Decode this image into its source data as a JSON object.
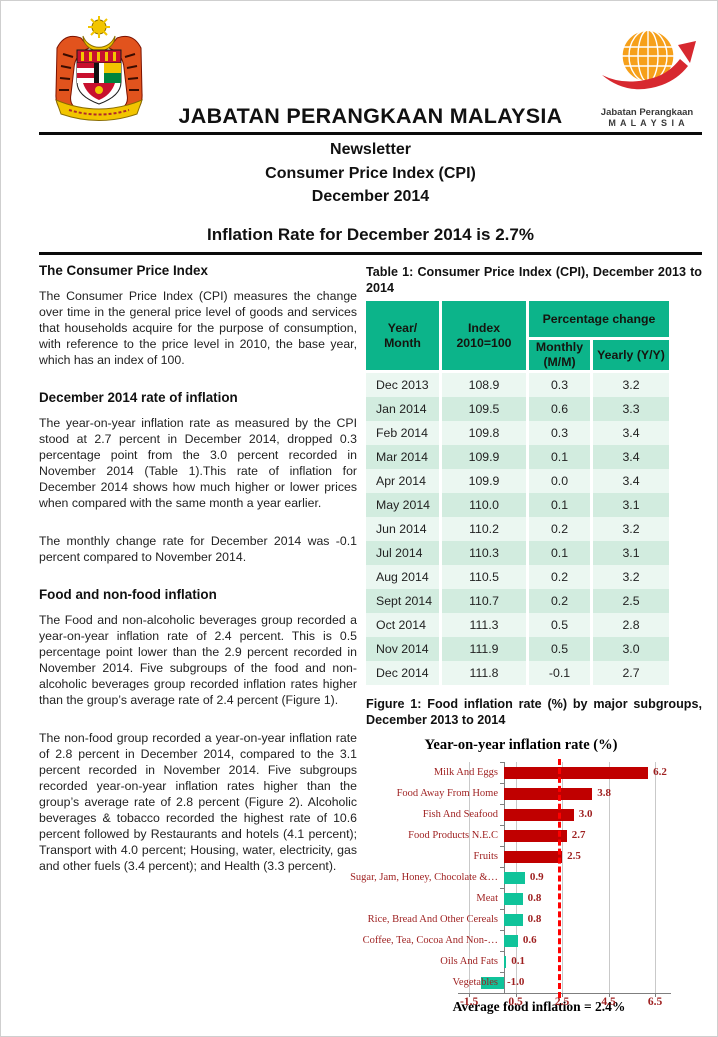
{
  "header": {
    "org_title": "JABATAN PERANGKAAN MALAYSIA",
    "doc_title_lines": [
      "Newsletter",
      "Consumer Price Index (CPI)",
      "December 2014"
    ],
    "headline": "Inflation Rate for December 2014 is 2.7%",
    "logo_right": {
      "line1": "Jabatan Perangkaan",
      "line2": "M A L A Y S I A"
    }
  },
  "article": {
    "sections": [
      {
        "heading": "The Consumer Price Index",
        "paragraphs": [
          "The Consumer Price Index (CPI) measures the change over time in the general price level of goods and services that households acquire for the purpose of consumption, with reference to the price level in 2010, the base year, which has an index of 100."
        ]
      },
      {
        "heading": "December 2014 rate of inflation",
        "paragraphs": [
          "The year-on-year inflation rate as measured by the CPI stood at 2.7 percent in December 2014, dropped 0.3 percentage point from the 3.0 percent recorded in November 2014 (Table 1).This rate of inflation for December 2014 shows how much higher or lower prices when compared with the same month a year earlier.",
          "The monthly change rate for December 2014 was -0.1 percent compared to November 2014."
        ]
      },
      {
        "heading": "Food and non-food inflation",
        "paragraphs": [
          "The Food and non-alcoholic beverages group recorded a year-on-year inflation rate of 2.4 percent. This is 0.5 percentage point lower than the 2.9 percent recorded in November 2014. Five subgroups of the food and non-alcoholic beverages group recorded inflation rates higher than the group’s average rate of 2.4 percent (Figure 1).",
          "The non-food group recorded a year-on-year inflation rate of 2.8 percent in December 2014, compared to the 3.1 percent recorded in November 2014. Five subgroups recorded year-on-year inflation rates higher than the group’s average rate of 2.8 percent (Figure 2). Alcoholic beverages & tobacco recorded the highest rate of 10.6 percent followed by Restaurants and hotels (4.1 percent); Transport with 4.0 percent; Housing, water, electricity, gas and other fuels (3.4 percent); and Health (3.3 percent)."
        ]
      }
    ]
  },
  "table1": {
    "caption": "Table 1: Consumer Price Index (CPI), December 2013 to 2014",
    "headers": {
      "year_month": "Year/\nMonth",
      "index": "Index\n2010=100",
      "pct_change": "Percentage change",
      "monthly": "Monthly\n(M/M)",
      "yearly": "Yearly (Y/Y)"
    },
    "rows": [
      [
        "Dec 2013",
        "108.9",
        "0.3",
        "3.2"
      ],
      [
        "Jan 2014",
        "109.5",
        "0.6",
        "3.3"
      ],
      [
        "Feb 2014",
        "109.8",
        "0.3",
        "3.4"
      ],
      [
        "Mar 2014",
        "109.9",
        "0.1",
        "3.4"
      ],
      [
        "Apr 2014",
        "109.9",
        "0.0",
        "3.4"
      ],
      [
        "May 2014",
        "110.0",
        "0.1",
        "3.1"
      ],
      [
        "Jun 2014",
        "110.2",
        "0.2",
        "3.2"
      ],
      [
        "Jul 2014",
        "110.3",
        "0.1",
        "3.1"
      ],
      [
        "Aug 2014",
        "110.5",
        "0.2",
        "3.2"
      ],
      [
        "Sept 2014",
        "110.7",
        "0.2",
        "2.5"
      ],
      [
        "Oct 2014",
        "111.3",
        "0.5",
        "2.8"
      ],
      [
        "Nov 2014",
        "111.9",
        "0.5",
        "3.0"
      ],
      [
        "Dec 2014",
        "111.8",
        "-0.1",
        "2.7"
      ]
    ]
  },
  "figure1": {
    "caption": "Figure 1: Food inflation rate  (%) by major subgroups, December 2013 to 2014"
  },
  "chart_data": {
    "type": "bar",
    "orientation": "horizontal",
    "title": "Year-on-year inflation rate (%)",
    "categories": [
      "Milk And Eggs",
      "Food Away From Home",
      "Fish And Seafood",
      "Food Products N.E.C",
      "Fruits",
      "Sugar, Jam, Honey, Chocolate &…",
      "Meat",
      "Rice, Bread And Other Cereals",
      "Coffee, Tea, Cocoa And Non-…",
      "Oils And Fats",
      "Vegetables"
    ],
    "values": [
      6.2,
      3.8,
      3.0,
      2.7,
      2.5,
      0.9,
      0.8,
      0.8,
      0.6,
      0.1,
      -1.0
    ],
    "bar_colors": [
      "#c00000",
      "#c00000",
      "#c00000",
      "#c00000",
      "#c00000",
      "#10c39a",
      "#10c39a",
      "#10c39a",
      "#10c39a",
      "#10c39a",
      "#10c39a"
    ],
    "xticks": [
      -1.5,
      0.5,
      2.5,
      4.5,
      6.5
    ],
    "xlim": [
      -2.0,
      7.2
    ],
    "grid": "vertical-major",
    "legend": "none",
    "reference_line": {
      "value": 2.4,
      "style": "dashed",
      "color": "#ff0000"
    },
    "footer_label": "Average food inflation = 2.4%"
  },
  "colors": {
    "table_header_green": "#0cb48a",
    "table_row_light": "#ebf7f1",
    "table_row_dark": "#d2ecdf",
    "bar_red": "#c00000",
    "bar_teal": "#10c39a",
    "reference_line_red": "#ff0000",
    "chart_text_red": "#9e1f1f"
  }
}
